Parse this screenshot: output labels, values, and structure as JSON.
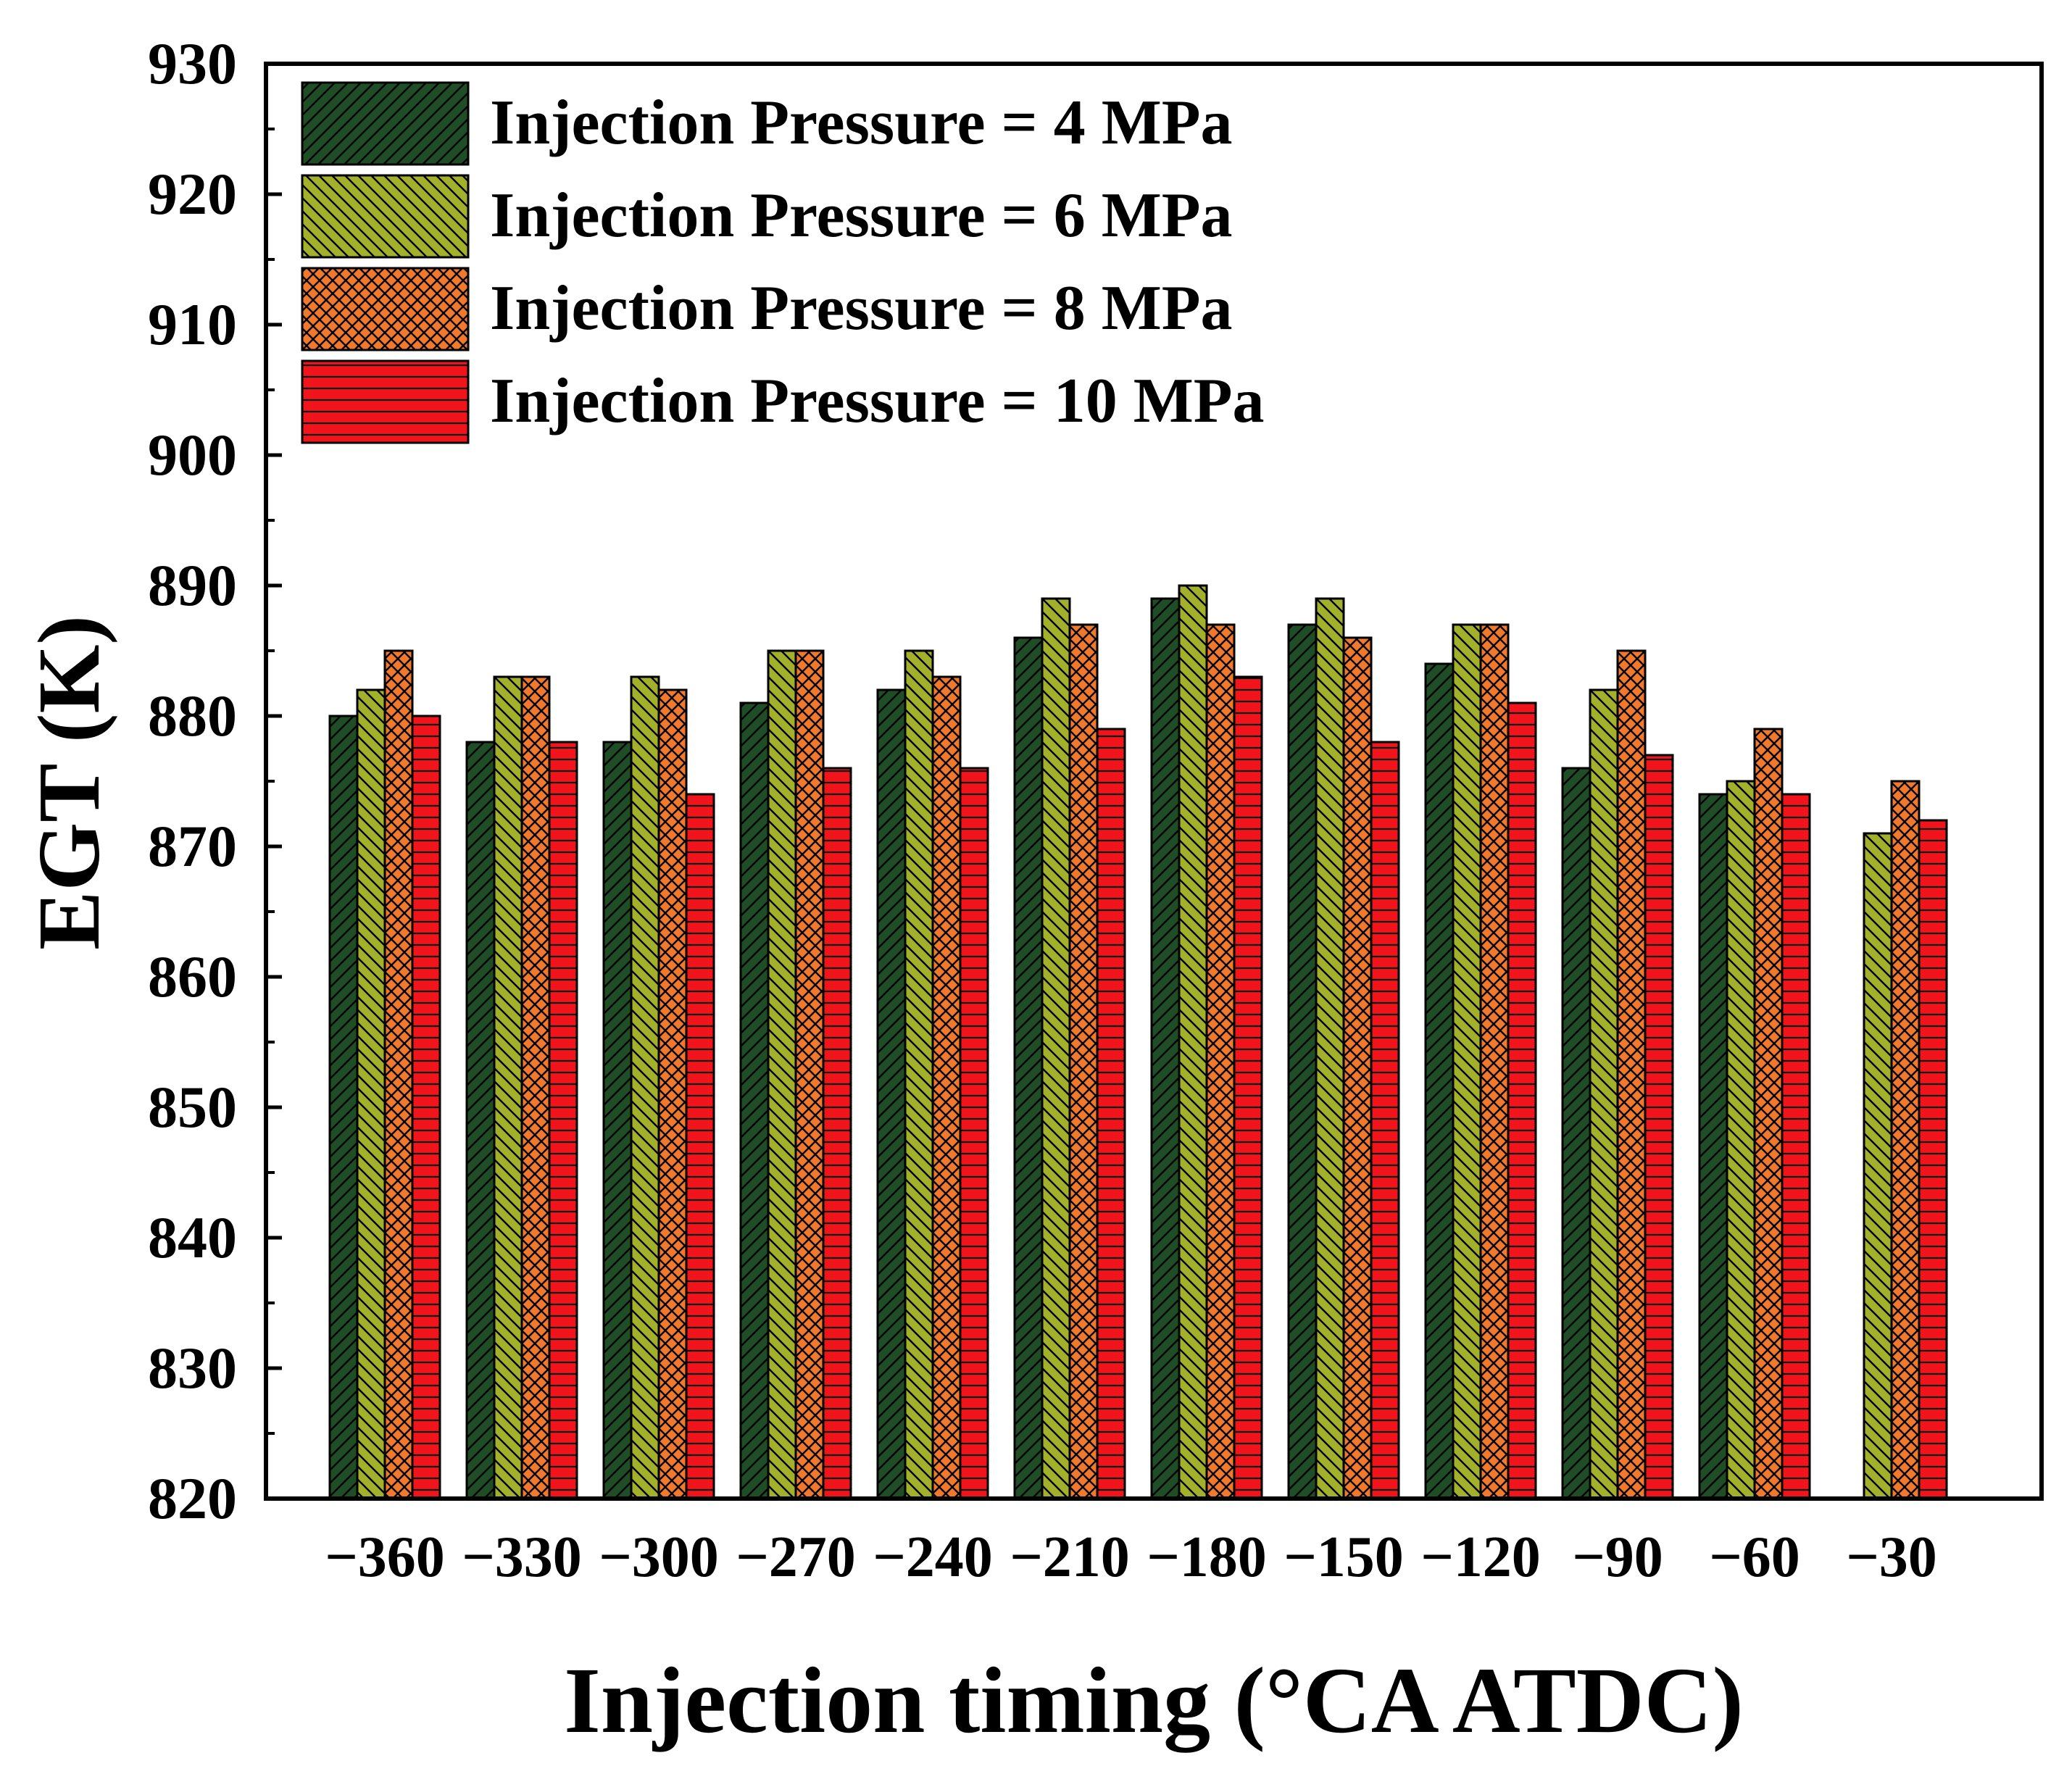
{
  "chart_data": {
    "type": "bar",
    "xlabel": "Injection timing (°CA ATDC)",
    "ylabel": "EGT (K)",
    "ylim": [
      820,
      930
    ],
    "yticks": [
      820,
      830,
      840,
      850,
      860,
      870,
      880,
      890,
      900,
      910,
      920,
      930
    ],
    "legend_position": "top-left",
    "categories": [
      "−360",
      "−330",
      "−300",
      "−270",
      "−240",
      "−210",
      "−180",
      "−150",
      "−120",
      "−90",
      "−60",
      "−30"
    ],
    "series": [
      {
        "name": "Injection Pressure = 4 MPa",
        "color": "#1e4d26",
        "pattern": "diagonal-forward",
        "values": [
          880,
          878,
          878,
          881,
          882,
          886,
          889,
          887,
          884,
          876,
          874,
          null
        ]
      },
      {
        "name": "Injection Pressure = 6 MPa",
        "color": "#a3b12a",
        "pattern": "diagonal-backward",
        "values": [
          882,
          883,
          883,
          885,
          885,
          889,
          890,
          889,
          887,
          882,
          875,
          871
        ]
      },
      {
        "name": "Injection Pressure = 8 MPa",
        "color": "#f2792b",
        "pattern": "crosshatch",
        "values": [
          885,
          883,
          882,
          885,
          883,
          887,
          887,
          886,
          887,
          885,
          879,
          875
        ]
      },
      {
        "name": "Injection Pressure = 10 MPa",
        "color": "#f2141a",
        "pattern": "horizontal",
        "values": [
          880,
          878,
          874,
          876,
          876,
          879,
          883,
          878,
          881,
          877,
          874,
          872
        ]
      }
    ]
  }
}
